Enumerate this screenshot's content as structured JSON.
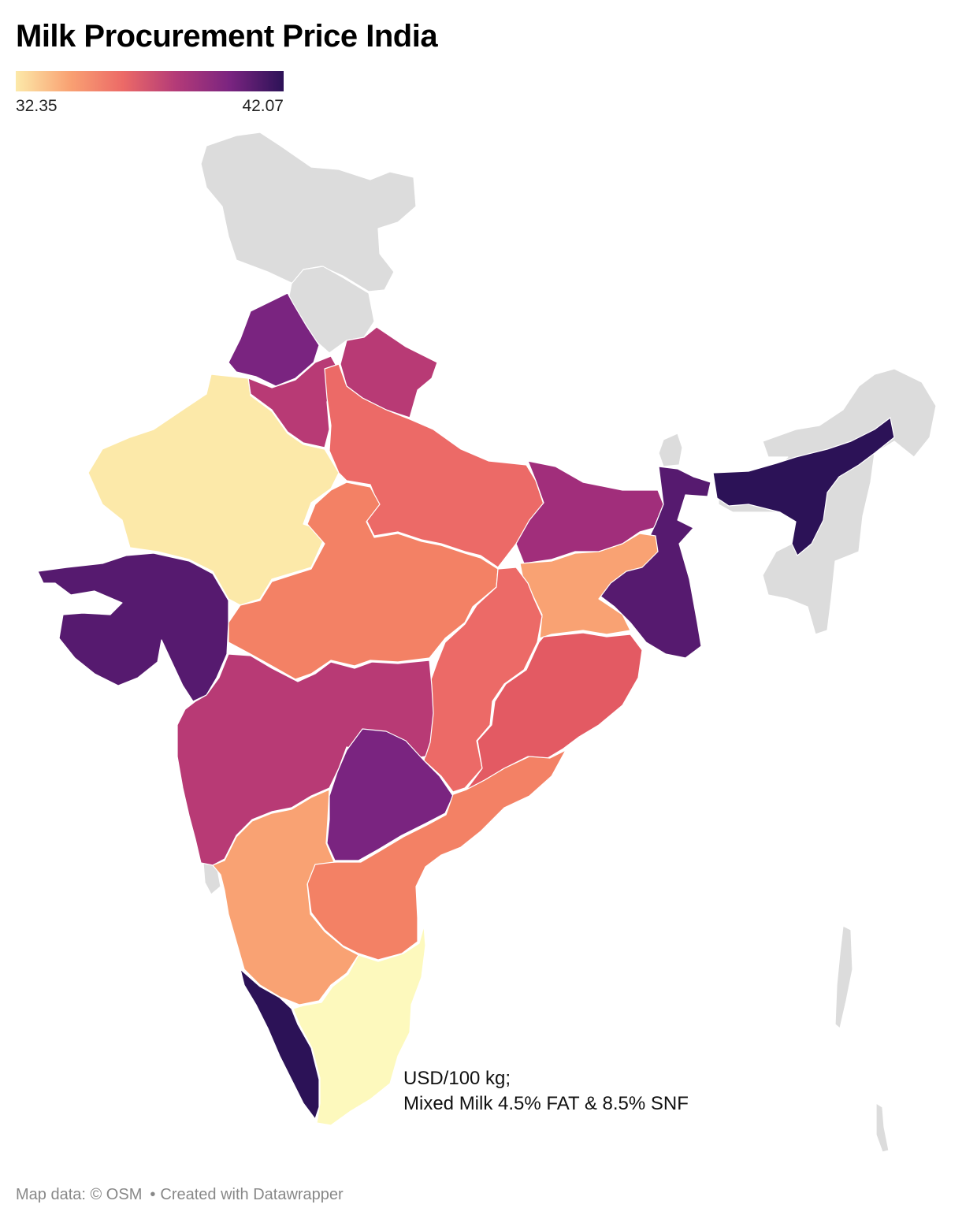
{
  "title": "Milk Procurement Price India",
  "legend": {
    "min_label": "32.35",
    "max_label": "42.07",
    "gradient": [
      "#fce9a9",
      "#f9a273",
      "#ec6a67",
      "#b33a78",
      "#7a2480",
      "#2c1257"
    ]
  },
  "annotation": {
    "line1": "USD/100 kg;",
    "line2": "Mixed Milk 4.5% FAT & 8.5% SNF"
  },
  "footer": {
    "map_data": "Map data: © OSM",
    "created_with": "Created with Datawrapper"
  },
  "colors": {
    "no_data": "#dcdcdc",
    "c_min": "#fce9a9",
    "c_lightest": "#fdf9bd",
    "c_orange_light": "#f9a273",
    "c_orange": "#f38165",
    "c_coral": "#ec6a67",
    "c_red": "#e35a63",
    "c_magenta": "#b83a75",
    "c_purple": "#a12e7b",
    "c_violet": "#7a2480",
    "c_deep": "#561a6f",
    "c_darkest": "#2c1257"
  }
}
